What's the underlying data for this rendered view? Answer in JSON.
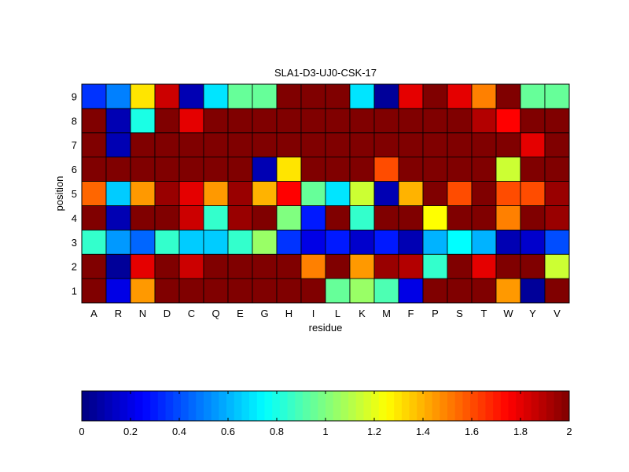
{
  "chart_data": {
    "type": "heatmap",
    "title": "SLA1-D3-UJ0-CSK-17",
    "xlabel": "residue",
    "ylabel": "position",
    "x_categories": [
      "A",
      "R",
      "N",
      "D",
      "C",
      "Q",
      "E",
      "G",
      "H",
      "I",
      "L",
      "K",
      "M",
      "F",
      "P",
      "S",
      "T",
      "W",
      "Y",
      "V"
    ],
    "y_categories": [
      "1",
      "2",
      "3",
      "4",
      "5",
      "6",
      "7",
      "8",
      "9"
    ],
    "colormap": "jet",
    "clim": [
      0,
      2
    ],
    "colorbar_ticks": [
      "0",
      "0.2",
      "0.4",
      "0.6",
      "0.8",
      "1",
      "1.2",
      "1.4",
      "1.6",
      "1.8",
      "2"
    ],
    "values": [
      [
        2.0,
        0.2,
        1.45,
        2.0,
        2.0,
        2.0,
        2.0,
        2.0,
        2.0,
        2.0,
        0.95,
        1.05,
        0.9,
        0.2,
        2.0,
        2.0,
        2.0,
        1.45,
        0.05,
        2.0
      ],
      [
        2.0,
        0.05,
        1.8,
        2.0,
        1.85,
        2.0,
        2.0,
        2.0,
        2.0,
        1.5,
        2.0,
        1.45,
        1.95,
        1.9,
        0.85,
        2.0,
        1.8,
        2.0,
        2.0,
        1.15
      ],
      [
        0.85,
        0.55,
        0.45,
        0.85,
        0.65,
        0.65,
        0.85,
        1.05,
        0.35,
        0.2,
        0.3,
        0.15,
        0.3,
        0.1,
        0.6,
        0.75,
        0.6,
        0.1,
        0.15,
        0.4
      ],
      [
        2.0,
        0.1,
        2.0,
        2.0,
        1.85,
        0.85,
        1.95,
        2.0,
        1.0,
        0.3,
        2.0,
        0.85,
        2.0,
        2.0,
        1.25,
        2.0,
        2.0,
        1.5,
        2.0,
        1.95
      ],
      [
        1.55,
        0.65,
        1.45,
        1.95,
        1.8,
        1.45,
        1.95,
        1.4,
        1.75,
        0.95,
        0.7,
        1.15,
        0.1,
        1.4,
        2.0,
        1.6,
        2.0,
        1.6,
        1.6,
        1.95
      ],
      [
        2.0,
        2.0,
        2.0,
        2.0,
        2.0,
        2.0,
        2.0,
        0.1,
        1.3,
        2.0,
        2.0,
        2.0,
        1.6,
        2.0,
        2.0,
        2.0,
        2.0,
        1.15,
        2.0,
        2.0
      ],
      [
        2.0,
        0.1,
        2.0,
        2.0,
        2.0,
        2.0,
        2.0,
        2.0,
        2.0,
        2.0,
        2.0,
        2.0,
        2.0,
        2.0,
        2.0,
        2.0,
        2.0,
        2.0,
        1.8,
        2.0
      ],
      [
        2.0,
        0.1,
        0.8,
        2.0,
        1.8,
        2.0,
        2.0,
        2.0,
        2.0,
        2.0,
        2.0,
        2.0,
        2.0,
        2.0,
        2.0,
        2.0,
        1.9,
        1.75,
        2.0,
        2.0
      ],
      [
        0.35,
        0.5,
        1.3,
        1.85,
        0.1,
        0.7,
        0.95,
        0.95,
        2.0,
        2.0,
        2.0,
        0.7,
        0.05,
        1.8,
        2.0,
        1.8,
        1.5,
        2.0,
        0.95,
        0.95
      ]
    ]
  }
}
